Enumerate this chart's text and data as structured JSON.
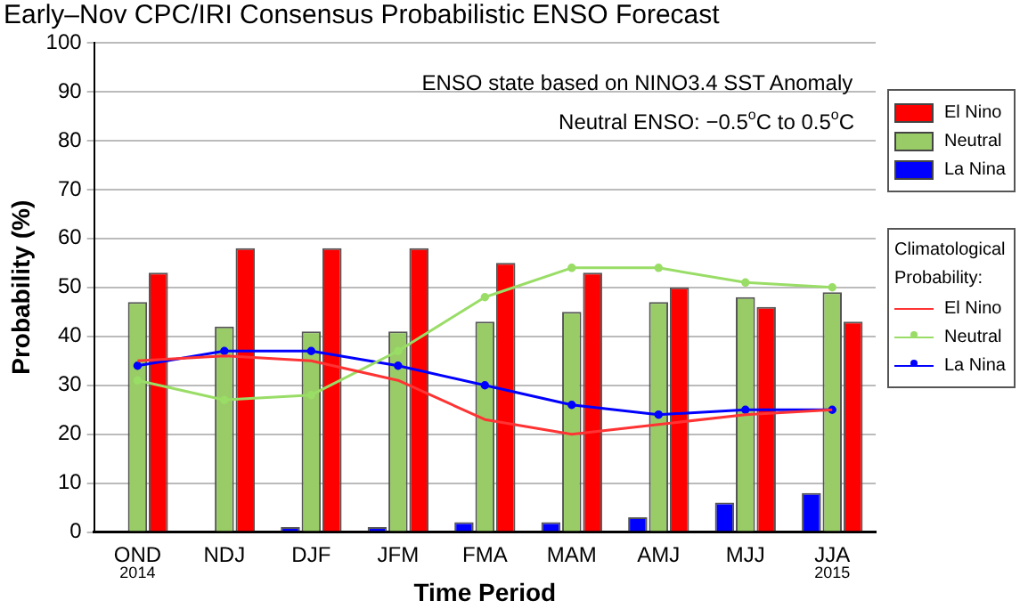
{
  "chart_data": {
    "type": "bar",
    "title": "Early–Nov CPC/IRI Consensus Probabilistic ENSO Forecast",
    "xlabel": "Time Period",
    "ylabel": "Probability (%)",
    "legend_title": "Climatological Probability:",
    "categories": [
      "OND",
      "NDJ",
      "DJF",
      "JFM",
      "FMA",
      "MAM",
      "AMJ",
      "MJJ",
      "JJA"
    ],
    "series": [
      {
        "name": "La Nina",
        "color": "#0000ff",
        "values": [
          0,
          0,
          1,
          1,
          2,
          2,
          3,
          6,
          8
        ]
      },
      {
        "name": "Neutral",
        "color": "#99cc66",
        "values": [
          47,
          42,
          41,
          41,
          43,
          45,
          47,
          48,
          49
        ]
      },
      {
        "name": "El Nino",
        "color": "#ff0000",
        "values": [
          53,
          58,
          58,
          58,
          55,
          53,
          50,
          46,
          43
        ]
      },
      {
        "name": "El Nino",
        "type": "line",
        "marker": "none",
        "color": "#ff3333",
        "values": [
          35,
          36,
          35,
          31,
          23,
          20,
          22,
          24,
          25
        ]
      },
      {
        "name": "Neutral",
        "type": "line",
        "marker": "circle",
        "color": "#99dd66",
        "values": [
          31,
          27,
          28,
          37,
          48,
          54,
          54,
          51,
          50
        ]
      },
      {
        "name": "La Nina",
        "type": "line",
        "marker": "circle",
        "color": "#0000ff",
        "values": [
          34,
          37,
          37,
          34,
          30,
          26,
          24,
          25,
          25
        ]
      }
    ],
    "ylim": [
      0,
      100
    ],
    "yticks": [
      0,
      10,
      20,
      30,
      40,
      50,
      60,
      70,
      80,
      90,
      100
    ],
    "grid": "y",
    "legend": "right",
    "annotations": [
      "ENSO state based on NINO3.4 SST Anomaly",
      "Neutral ENSO: −0.5$^{o}$C to 0.5$^{o}$C",
      "2014",
      "2015"
    ]
  }
}
